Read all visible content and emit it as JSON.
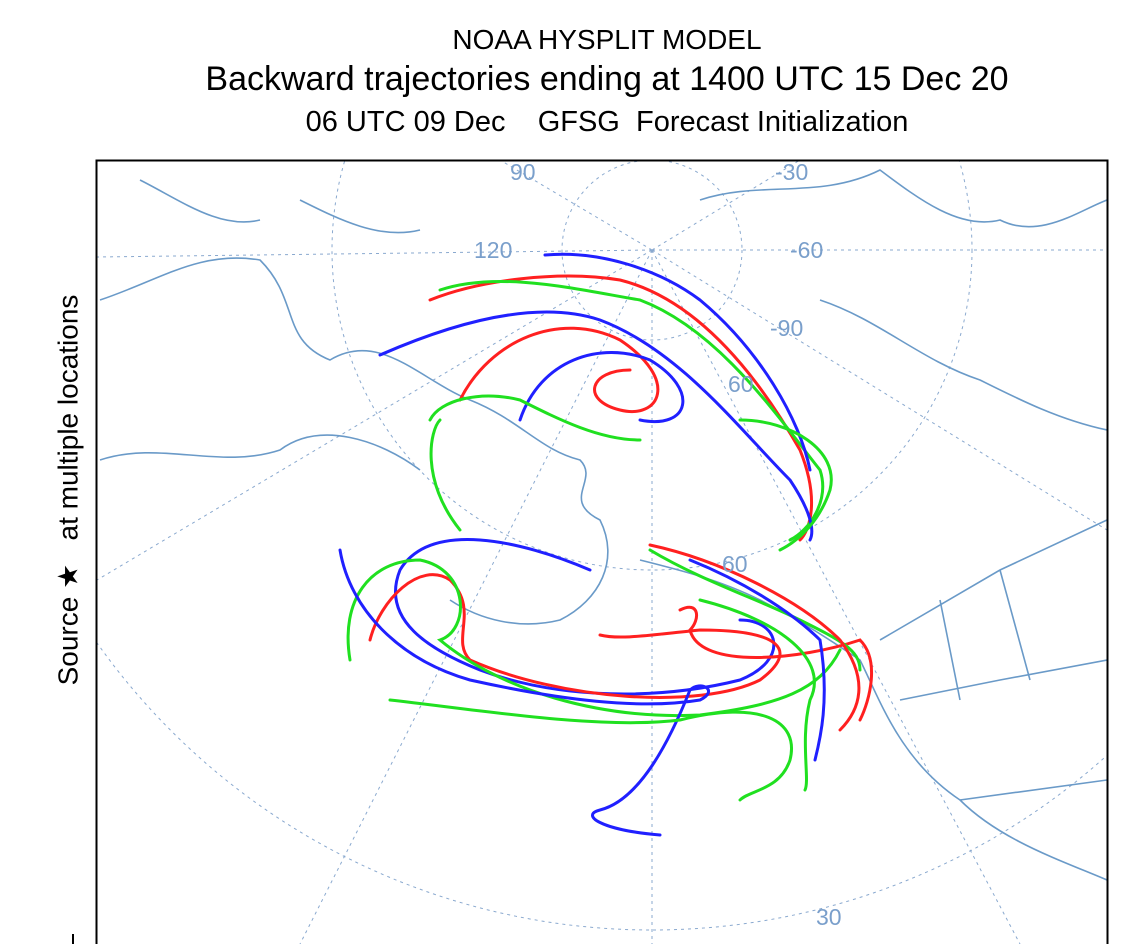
{
  "header": {
    "line1": "NOAA HYSPLIT MODEL",
    "line2": "Backward trajectories ending at 1400 UTC 15 Dec 20",
    "line3": "06 UTC 09 Dec    GFSG  Forecast Initialization"
  },
  "side_label": "Source ★   at multiple locations",
  "map": {
    "graticule_labels": [
      "90",
      "-30",
      "120",
      "-60",
      "-90",
      "60",
      "60",
      "30"
    ]
  }
}
